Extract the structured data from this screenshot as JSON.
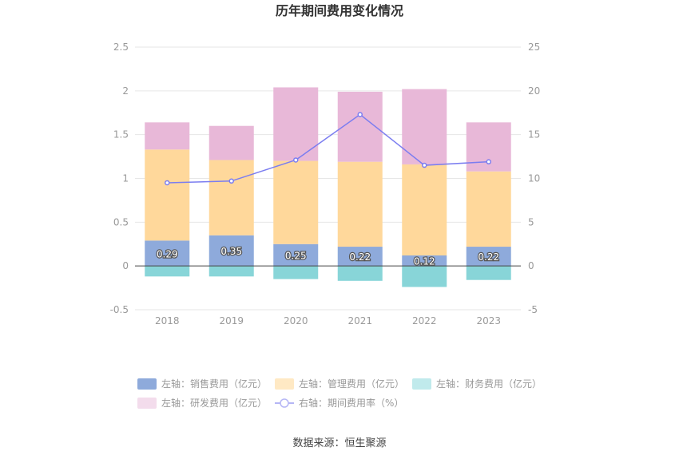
{
  "title": "历年期间费用变化情况",
  "source": "数据来源：恒生聚源",
  "chart_data": {
    "type": "bar",
    "stacked": true,
    "categories": [
      "2018",
      "2019",
      "2020",
      "2021",
      "2022",
      "2023"
    ],
    "y_left": {
      "min": -0.5,
      "max": 2.5,
      "ticks": [
        "-0.5",
        "0",
        "0.5",
        "1",
        "1.5",
        "2",
        "2.5"
      ]
    },
    "y_right": {
      "min": -5,
      "max": 25,
      "ticks": [
        "-5",
        "0",
        "5",
        "10",
        "15",
        "20",
        "25"
      ]
    },
    "series": [
      {
        "name": "左轴：销售费用（亿元）",
        "type": "bar",
        "axis": "left",
        "color": "#8eaadb",
        "values": [
          0.29,
          0.35,
          0.25,
          0.22,
          0.12,
          0.22
        ],
        "labels": [
          "0.29",
          "0.35",
          "0.25",
          "0.22",
          "0.12",
          "0.22"
        ],
        "legend_color": "#8eaadb"
      },
      {
        "name": "左轴：管理费用（亿元）",
        "type": "bar",
        "axis": "left",
        "color": "#ffd89b",
        "values": [
          1.04,
          0.86,
          0.95,
          0.97,
          1.04,
          0.86
        ],
        "legend_color": "#ffe9c4"
      },
      {
        "name": "左轴：财务费用（亿元）",
        "type": "bar",
        "axis": "left",
        "color": "#88d5d8",
        "values": [
          -0.12,
          -0.12,
          -0.15,
          -0.17,
          -0.24,
          -0.16
        ],
        "legend_color": "#c0eaec"
      },
      {
        "name": "左轴：研发费用（亿元）",
        "type": "bar",
        "axis": "left",
        "color": "#e8b8d8",
        "values": [
          0.31,
          0.39,
          0.84,
          0.8,
          0.86,
          0.56
        ],
        "legend_color": "#f3dcec"
      },
      {
        "name": "右轴：期间费用率（%）",
        "type": "line",
        "axis": "right",
        "color": "#7b7df0",
        "values": [
          9.5,
          9.7,
          12.1,
          17.3,
          11.5,
          11.9
        ],
        "legend_color": "#b5b6f5"
      }
    ]
  }
}
